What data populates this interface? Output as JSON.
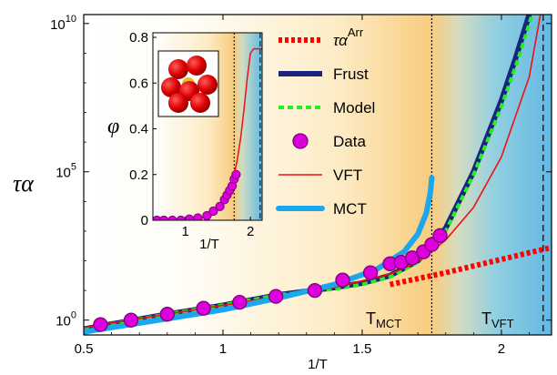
{
  "chart_data": [
    {
      "type": "line",
      "xlabel": "1/T",
      "ylabel": "τα",
      "xlim": [
        0.5,
        2.18
      ],
      "ylim_log10": [
        -0.5,
        10.3
      ],
      "log_y": true,
      "xticks": [
        "0.5",
        "1",
        "1.5",
        "2"
      ],
      "xtick_values": [
        0.5,
        1.0,
        1.5,
        2.0
      ],
      "yticks": [
        {
          "value_log10": 0,
          "base": "10",
          "exp": "0"
        },
        {
          "value_log10": 5,
          "base": "10",
          "exp": "5"
        },
        {
          "value_log10": 10,
          "base": "10",
          "exp": "10"
        }
      ],
      "vlines": [
        {
          "x": 1.75,
          "label": "T",
          "sub": "MCT",
          "style": "dotted"
        },
        {
          "x": 2.15,
          "label": "T",
          "sub": "VFT",
          "style": "dashed"
        }
      ],
      "legend_position": "top-right",
      "series": [
        {
          "name": "τα",
          "name_sup": "Arr",
          "kind": "dotted-line",
          "color": "#ff0000",
          "x": [
            1.6,
            1.8,
            2.0,
            2.18
          ],
          "y_log10": [
            1.2,
            1.6,
            2.05,
            2.45
          ]
        },
        {
          "name": "Frust",
          "kind": "line",
          "color": "#1a237e",
          "x": [
            0.5,
            0.8,
            1.0,
            1.2,
            1.4,
            1.5,
            1.6,
            1.7,
            1.75,
            1.8,
            1.9,
            2.0,
            2.05,
            2.1
          ],
          "y_log10": [
            -0.3,
            0.2,
            0.5,
            0.85,
            1.1,
            1.25,
            1.5,
            2.0,
            2.5,
            3.1,
            5.0,
            7.4,
            8.8,
            10.3
          ]
        },
        {
          "name": "Model",
          "kind": "dashed-line",
          "color": "#22ee22",
          "x": [
            0.5,
            0.8,
            1.0,
            1.2,
            1.4,
            1.5,
            1.6,
            1.7,
            1.75,
            1.8,
            1.9,
            2.0,
            2.06,
            2.11
          ],
          "y_log10": [
            -0.3,
            0.2,
            0.5,
            0.85,
            1.05,
            1.2,
            1.45,
            1.95,
            2.45,
            3.0,
            4.9,
            7.2,
            8.8,
            10.3
          ]
        },
        {
          "name": "Data",
          "kind": "markers",
          "color": "#dd00dd",
          "x": [
            0.56,
            0.67,
            0.8,
            0.93,
            1.06,
            1.19,
            1.33,
            1.43,
            1.53,
            1.6,
            1.64,
            1.68,
            1.72,
            1.75,
            1.78
          ],
          "y_log10": [
            -0.15,
            0.0,
            0.2,
            0.4,
            0.6,
            0.8,
            1.0,
            1.35,
            1.6,
            1.9,
            1.95,
            2.1,
            2.3,
            2.55,
            2.85
          ]
        },
        {
          "name": "VFT",
          "kind": "thin-line",
          "color": "#ee1111",
          "x": [
            0.5,
            0.8,
            1.0,
            1.2,
            1.4,
            1.6,
            1.7,
            1.8,
            1.9,
            2.0,
            2.1,
            2.14
          ],
          "y_log10": [
            -0.25,
            0.2,
            0.5,
            0.8,
            1.1,
            1.55,
            1.95,
            2.7,
            3.8,
            5.5,
            8.2,
            10.3
          ]
        },
        {
          "name": "MCT",
          "kind": "thick-line",
          "color": "#1aa7ee",
          "x": [
            0.5,
            0.8,
            1.0,
            1.2,
            1.4,
            1.55,
            1.65,
            1.7,
            1.73,
            1.745,
            1.75
          ],
          "y_log10": [
            -0.4,
            0.05,
            0.35,
            0.75,
            1.2,
            1.7,
            2.3,
            2.9,
            3.6,
            4.3,
            4.8
          ]
        }
      ]
    },
    {
      "type": "line",
      "role": "inset",
      "xlabel": "1/T",
      "ylabel": "φ",
      "xlim": [
        0.5,
        2.18
      ],
      "ylim": [
        0,
        0.82
      ],
      "xticks": [
        "1",
        "2"
      ],
      "xtick_values": [
        1.0,
        2.0
      ],
      "yticks": [
        "0",
        "0.2",
        "0.4",
        "0.6",
        "0.8"
      ],
      "ytick_values": [
        0,
        0.2,
        0.4,
        0.6,
        0.8
      ],
      "vlines": [
        {
          "x": 1.75,
          "style": "dotted"
        },
        {
          "x": 2.15,
          "style": "dashed"
        }
      ],
      "series": [
        {
          "name": "VFT",
          "kind": "line",
          "color": "#ee1111",
          "x": [
            0.5,
            1.2,
            1.4,
            1.55,
            1.65,
            1.7,
            1.75,
            1.8,
            1.85,
            1.9,
            1.95,
            2.0,
            2.05,
            2.18
          ],
          "y": [
            0.0,
            0.005,
            0.02,
            0.06,
            0.11,
            0.15,
            0.2,
            0.27,
            0.36,
            0.48,
            0.62,
            0.73,
            0.75,
            0.75
          ]
        },
        {
          "name": "Data",
          "kind": "markers",
          "color": "#dd00dd",
          "x": [
            0.56,
            0.67,
            0.8,
            0.93,
            1.06,
            1.19,
            1.33,
            1.43,
            1.53,
            1.6,
            1.64,
            1.68,
            1.72,
            1.75,
            1.78
          ],
          "y": [
            0.0,
            0.0,
            0.0,
            0.0,
            0.005,
            0.01,
            0.02,
            0.04,
            0.06,
            0.09,
            0.11,
            0.13,
            0.15,
            0.18,
            0.2
          ]
        }
      ]
    }
  ]
}
